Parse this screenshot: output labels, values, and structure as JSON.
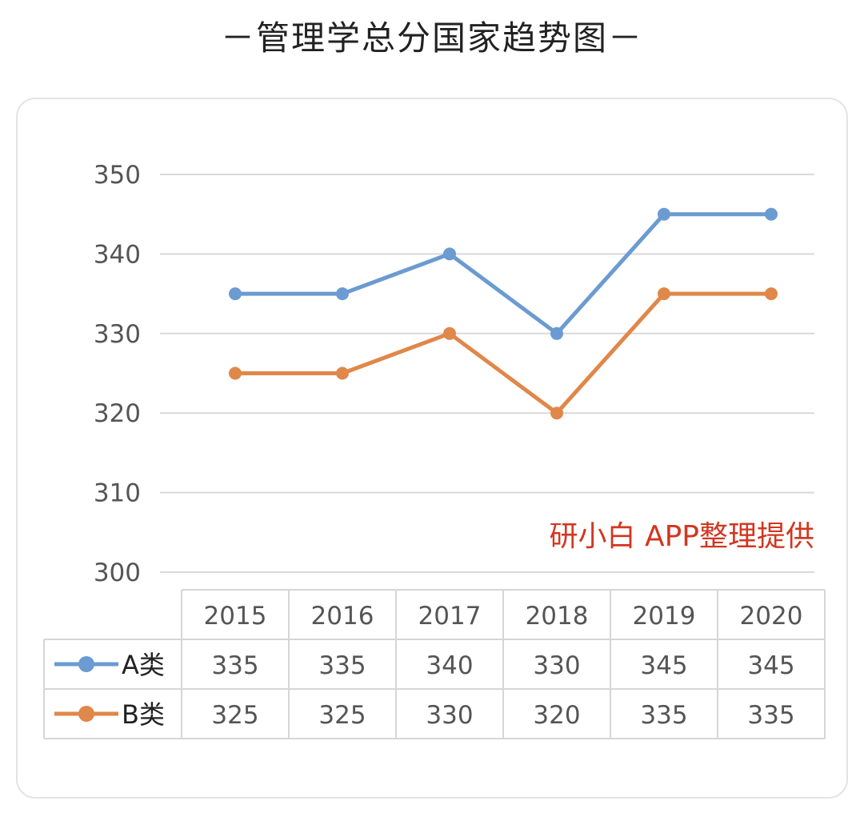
{
  "title": "－管理学总分国家趋势图－",
  "watermark": "研小白 APP整理提供",
  "colors": {
    "series_a": "#6b9bd0",
    "series_b": "#e0874a",
    "grid": "#d9d9d9",
    "axis_text": "#555555",
    "table_border": "#d6d6d6"
  },
  "chart_data": {
    "type": "line",
    "title": "－管理学总分国家趋势图－",
    "categories": [
      "2015",
      "2016",
      "2017",
      "2018",
      "2019",
      "2020"
    ],
    "series": [
      {
        "name": "A类",
        "values": [
          335,
          335,
          340,
          330,
          345,
          345
        ]
      },
      {
        "name": "B类",
        "values": [
          325,
          325,
          330,
          320,
          335,
          335
        ]
      }
    ],
    "y_ticks": [
      "300",
      "310",
      "320",
      "330",
      "340",
      "350"
    ],
    "ylim": [
      300,
      350
    ],
    "grid": true,
    "legend": "data-table-left",
    "data_table": true
  }
}
